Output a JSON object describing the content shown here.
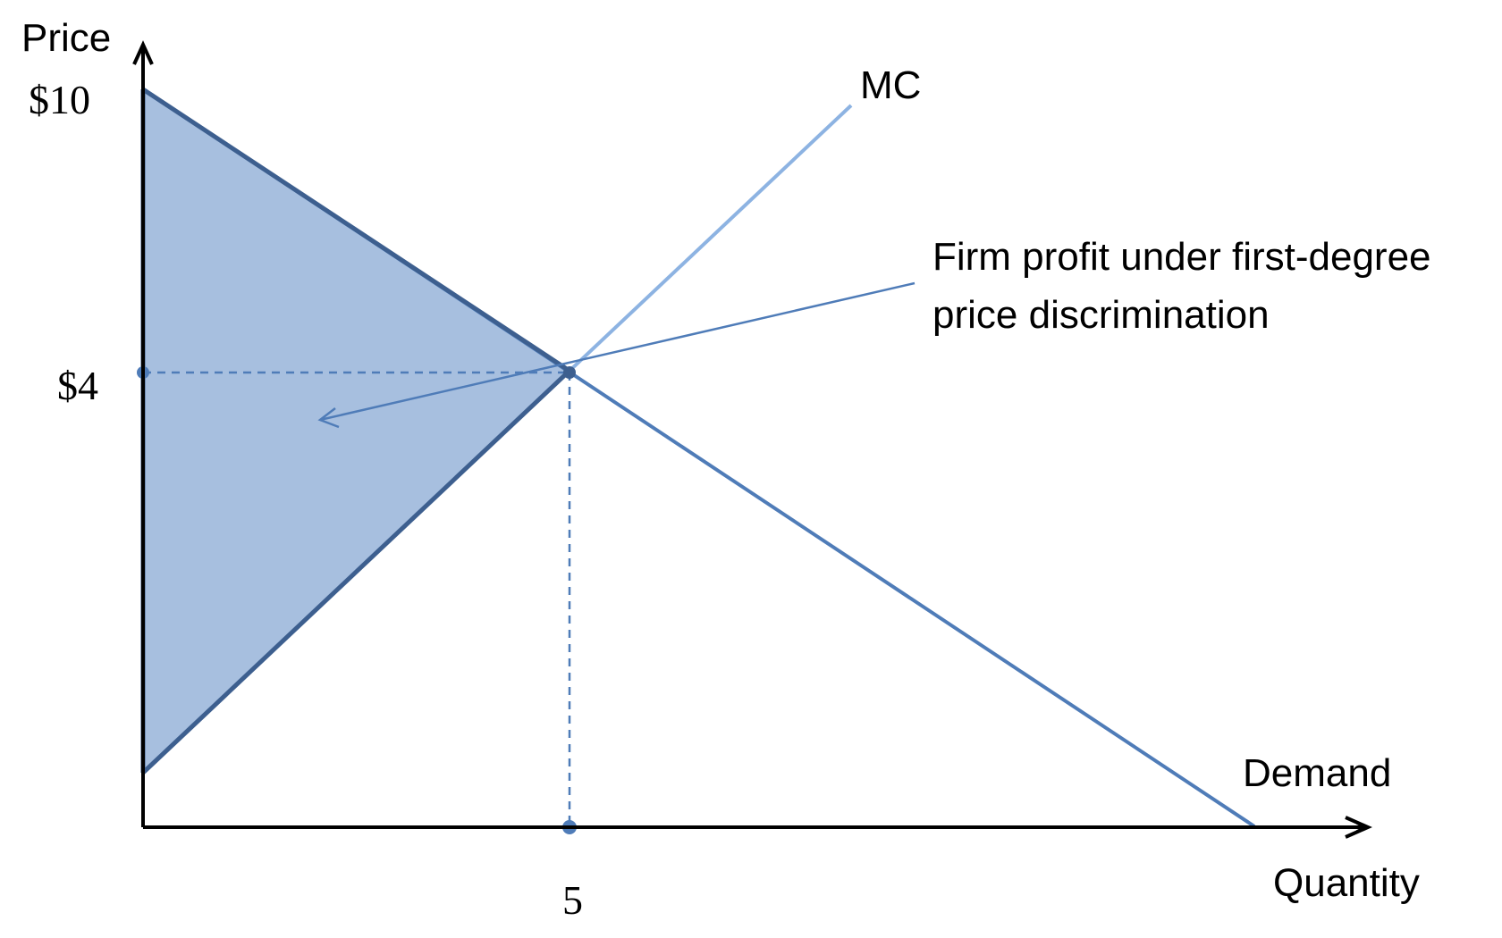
{
  "axes": {
    "y_label": "Price",
    "x_label": "Quantity",
    "y_ticks": [
      "$10",
      "$4"
    ],
    "x_ticks": [
      "5"
    ]
  },
  "curves": {
    "mc_label": "MC",
    "demand_label": "Demand"
  },
  "annotation": {
    "line1": "Firm profit under first-degree",
    "line2": "price discrimination"
  },
  "colors": {
    "shaded_area": "#a7bfdf",
    "demand": "#4f7cb8",
    "mc": "#8db3e2",
    "area_border": "#3d5f8f",
    "guides": "#4f7cb8",
    "axes": "#000000"
  }
}
